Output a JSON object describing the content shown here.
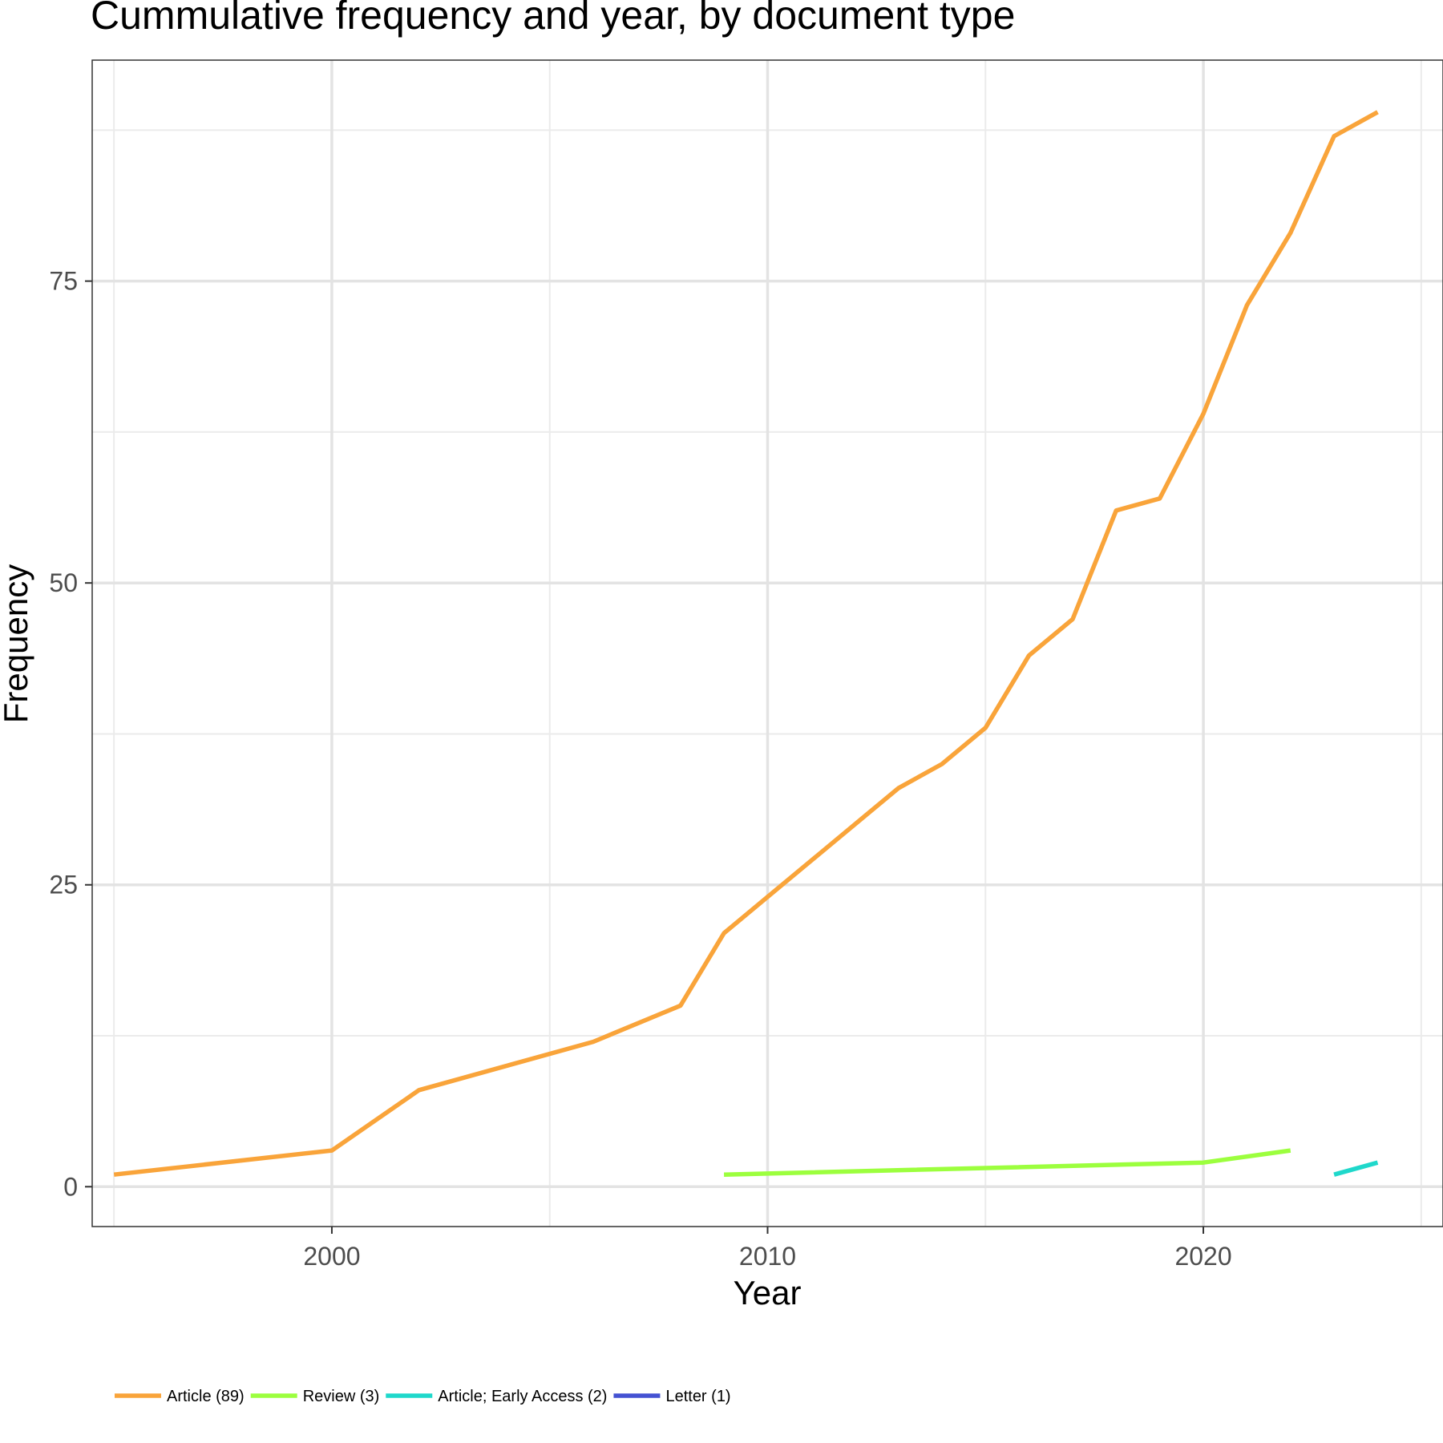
{
  "chart_data": {
    "type": "line",
    "title": "Cummulative frequency and year, by document type",
    "xlabel": "Year",
    "ylabel": "Frequency",
    "xlim": [
      1994.5,
      2025.5
    ],
    "ylim": [
      -3.3,
      93.3
    ],
    "x_ticks": [
      2000,
      2010,
      2020
    ],
    "x_minor": [
      1995,
      2005,
      2015,
      2025
    ],
    "y_ticks": [
      0,
      25,
      50,
      75
    ],
    "y_minor": [
      12.5,
      37.5,
      62.5,
      87.5
    ],
    "grid": true,
    "legend_position": "bottom",
    "series": [
      {
        "name": "Article (89)",
        "color": "#F9A43A",
        "x": [
          1995,
          2000,
          2002,
          2006,
          2008,
          2009,
          2010,
          2013,
          2014,
          2015,
          2016,
          2017,
          2018,
          2019,
          2020,
          2021,
          2022,
          2023,
          2024
        ],
        "y": [
          1,
          3,
          8,
          12,
          15,
          21,
          24,
          33,
          35,
          38,
          44,
          47,
          56,
          57,
          64,
          73,
          79,
          87,
          89
        ]
      },
      {
        "name": "Review (3)",
        "color": "#9CFF3E",
        "x": [
          2009,
          2020,
          2022
        ],
        "y": [
          1,
          2,
          3
        ]
      },
      {
        "name": "Article; Early Access (2)",
        "color": "#1FD8CB",
        "x": [
          2023,
          2024
        ],
        "y": [
          1,
          2
        ]
      },
      {
        "name": "Letter (1)",
        "color": "#4452D2",
        "x": [],
        "y": []
      }
    ]
  }
}
